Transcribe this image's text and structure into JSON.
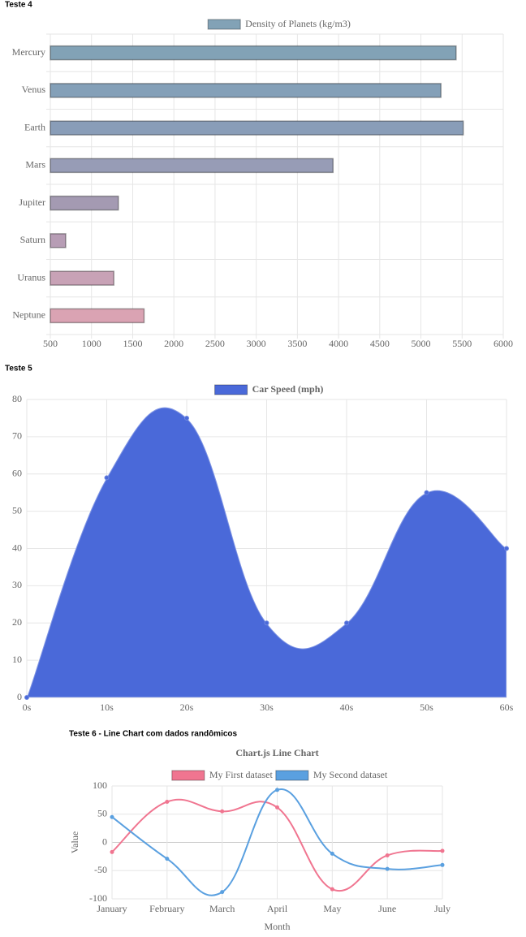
{
  "headings": [
    "Teste 4",
    "Teste 5",
    "Teste 6 - Line Chart com dados randômicos"
  ],
  "chart_data": [
    {
      "type": "bar",
      "horizontal": true,
      "categories": [
        "Mercury",
        "Venus",
        "Earth",
        "Mars",
        "Jupiter",
        "Saturn",
        "Uranus",
        "Neptune"
      ],
      "series": [
        {
          "name": "Density of Planets (kg/m3)",
          "colors": [
            "#82a2b6",
            "#84a0b8",
            "#899db8",
            "#979cb6",
            "#a49ab2",
            "#b79db5",
            "#c8a2b6",
            "#daa3b3"
          ],
          "values": [
            5427,
            5243,
            5514,
            3933,
            1326,
            687,
            1271,
            1638
          ]
        }
      ],
      "xlim": [
        500,
        6000
      ],
      "xticks": [
        500,
        1000,
        1500,
        2000,
        2500,
        3000,
        3500,
        4000,
        4500,
        5000,
        5500,
        6000
      ],
      "grid": true
    },
    {
      "type": "area",
      "categories": [
        "0s",
        "10s",
        "20s",
        "30s",
        "40s",
        "50s",
        "60s"
      ],
      "series": [
        {
          "name": "Car Speed (mph)",
          "color": "#4a69d9",
          "values": [
            0,
            59,
            75,
            20,
            20,
            55,
            40
          ]
        }
      ],
      "ylim": [
        0,
        80
      ],
      "yticks": [
        0,
        10,
        20,
        30,
        40,
        50,
        60,
        70,
        80
      ],
      "grid": true
    },
    {
      "type": "line",
      "title": "Chart.js Line Chart",
      "x_label": "Month",
      "y_label": "Value",
      "categories": [
        "January",
        "February",
        "March",
        "April",
        "May",
        "June",
        "July"
      ],
      "series": [
        {
          "name": "My First dataset",
          "color": "#f07590",
          "values": [
            -17,
            72,
            55,
            62,
            -83,
            -23,
            -15
          ]
        },
        {
          "name": "My Second dataset",
          "color": "#5aa0e0",
          "values": [
            45,
            -29,
            -88,
            93,
            -20,
            -47,
            -40
          ]
        }
      ],
      "ylim": [
        -100,
        100
      ],
      "yticks": [
        -100,
        -50,
        0,
        50,
        100
      ],
      "grid": true
    }
  ]
}
